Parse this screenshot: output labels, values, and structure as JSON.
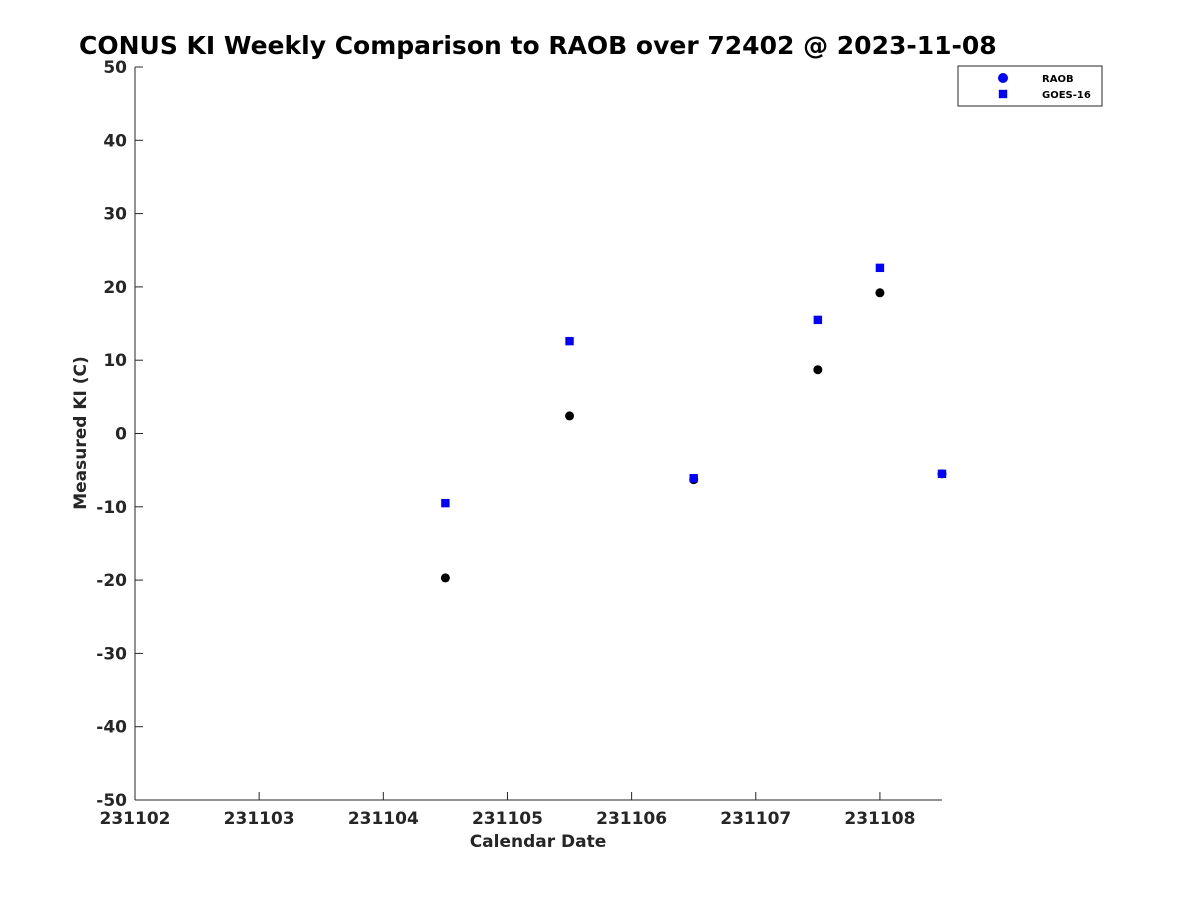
{
  "chart_data": {
    "type": "scatter",
    "title": "CONUS KI Weekly Comparison to RAOB over 72402 @ 2023-11-08",
    "xlabel": "Calendar Date",
    "ylabel": "Measured KI (C)",
    "xlim": [
      "2023-11-02",
      "2023-11-08 12:00"
    ],
    "ylim": [
      -50,
      50
    ],
    "x_ticks": [
      {
        "label": "231102",
        "x": "2023-11-02"
      },
      {
        "label": "231103",
        "x": "2023-11-03"
      },
      {
        "label": "231104",
        "x": "2023-11-04"
      },
      {
        "label": "231105",
        "x": "2023-11-05"
      },
      {
        "label": "231106",
        "x": "2023-11-06"
      },
      {
        "label": "231107",
        "x": "2023-11-07"
      },
      {
        "label": "231108",
        "x": "2023-11-08"
      }
    ],
    "y_ticks": [
      50,
      40,
      30,
      20,
      10,
      0,
      -10,
      -20,
      -30,
      -40,
      -50
    ],
    "grid": false,
    "legend_position": "top-right",
    "series": [
      {
        "name": "RAOB",
        "marker": "circle",
        "color": "#000000",
        "legend_color": "#0000ff",
        "points": [
          {
            "x": "2023-11-04 12:00",
            "y": -19.7
          },
          {
            "x": "2023-11-05 12:00",
            "y": 2.4
          },
          {
            "x": "2023-11-06 12:00",
            "y": -6.3
          },
          {
            "x": "2023-11-07 12:00",
            "y": 8.7
          },
          {
            "x": "2023-11-08 00:00",
            "y": 19.2
          },
          {
            "x": "2023-11-08 12:00",
            "y": -5.5
          }
        ]
      },
      {
        "name": "GOES-16",
        "marker": "square",
        "color": "#0000ff",
        "legend_color": "#0000ff",
        "points": [
          {
            "x": "2023-11-04 12:00",
            "y": -9.5
          },
          {
            "x": "2023-11-05 12:00",
            "y": 12.6
          },
          {
            "x": "2023-11-06 12:00",
            "y": -6.1
          },
          {
            "x": "2023-11-07 12:00",
            "y": 15.5
          },
          {
            "x": "2023-11-08 00:00",
            "y": 22.6
          },
          {
            "x": "2023-11-08 12:00",
            "y": -5.5
          }
        ]
      }
    ]
  }
}
